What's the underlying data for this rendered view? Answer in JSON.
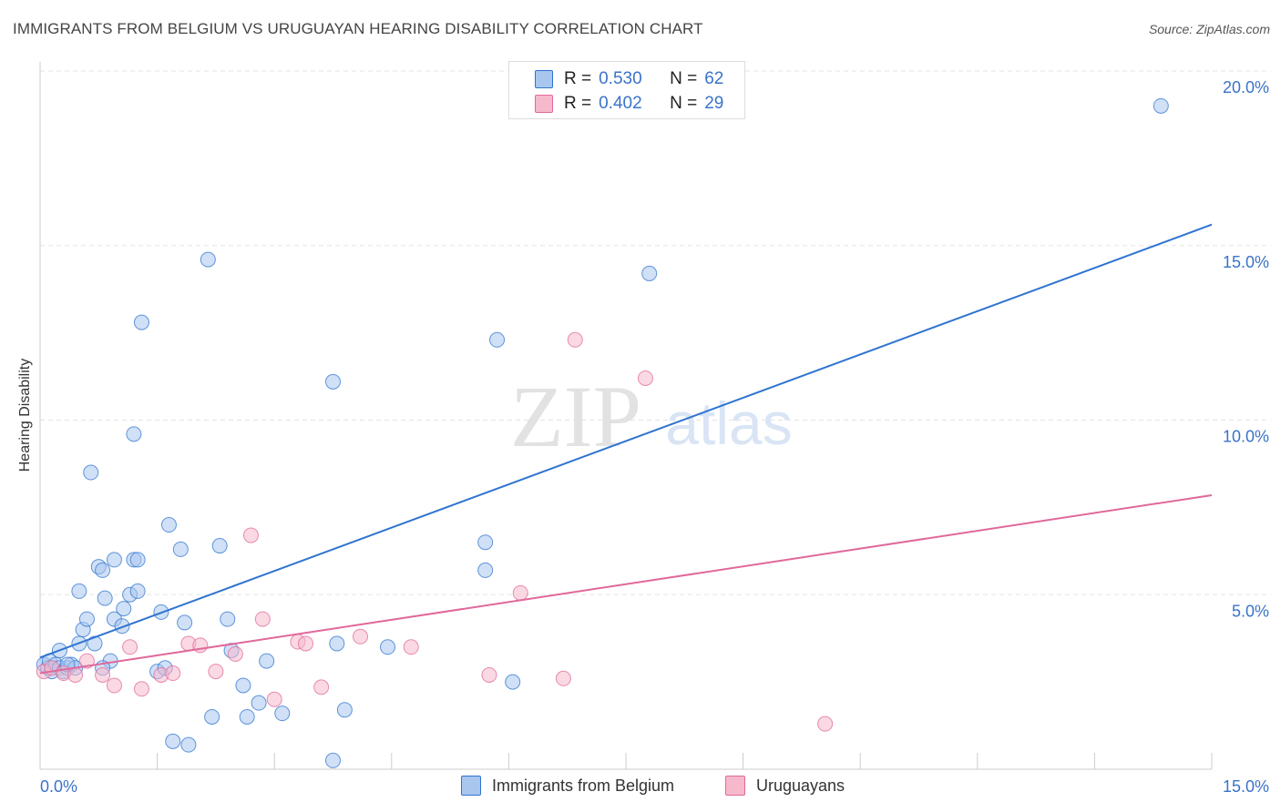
{
  "header": {
    "title": "IMMIGRANTS FROM BELGIUM VS URUGUAYAN HEARING DISABILITY CORRELATION CHART",
    "source": "Source: ZipAtlas.com"
  },
  "watermark": {
    "zip": "ZIP",
    "atlas": "atlas"
  },
  "stats_legend": [
    {
      "r_label": "R =",
      "r_value": "0.530",
      "n_label": "N =",
      "n_value": "62",
      "color": "#a9c6ef"
    },
    {
      "r_label": "R =",
      "r_value": "0.402",
      "n_label": "N =",
      "n_value": "29",
      "color": "#f6b9cc"
    }
  ],
  "bottom_legend": [
    {
      "label": "Immigrants from Belgium",
      "color": "#a9c6ef"
    },
    {
      "label": "Uruguayans",
      "color": "#f6b9cc"
    }
  ],
  "colors": {
    "blue": "#2f74d0",
    "blue_fill": "#a9c6ef",
    "pink": "#e0689b",
    "pink_fill": "#f6b9cc",
    "tick_label": "#3a73c9"
  },
  "chart_data": {
    "type": "scatter",
    "title": "IMMIGRANTS FROM BELGIUM VS URUGUAYAN HEARING DISABILITY CORRELATION CHART",
    "xlabel": "",
    "ylabel": "Hearing Disability",
    "xlim": [
      0,
      15
    ],
    "ylim": [
      0,
      20
    ],
    "x_tick_labels": [
      "0.0%",
      "15.0%"
    ],
    "y_ticks": [
      {
        "value": 5,
        "label": "5.0%"
      },
      {
        "value": 10,
        "label": "10.0%"
      },
      {
        "value": 15,
        "label": "15.0%"
      },
      {
        "value": 20,
        "label": "20.0%"
      }
    ],
    "grid": true,
    "series": [
      {
        "name": "Immigrants from Belgium",
        "color": "#2f74d0",
        "fill": "#a9c6ef",
        "r": 0.53,
        "n": 62,
        "trendline": {
          "x": [
            0,
            15
          ],
          "y": [
            3.2,
            15.6
          ]
        },
        "points": [
          [
            0.05,
            3.0
          ],
          [
            0.1,
            2.9
          ],
          [
            0.12,
            3.1
          ],
          [
            0.15,
            2.8
          ],
          [
            0.2,
            3.0
          ],
          [
            0.25,
            2.9
          ],
          [
            0.3,
            2.8
          ],
          [
            0.35,
            2.9
          ],
          [
            0.4,
            3.0
          ],
          [
            0.45,
            2.9
          ],
          [
            0.25,
            3.4
          ],
          [
            0.5,
            3.6
          ],
          [
            0.55,
            4.0
          ],
          [
            0.6,
            4.3
          ],
          [
            0.7,
            3.6
          ],
          [
            0.5,
            5.1
          ],
          [
            0.65,
            8.5
          ],
          [
            0.75,
            5.8
          ],
          [
            0.8,
            5.7
          ],
          [
            0.83,
            4.9
          ],
          [
            0.9,
            3.1
          ],
          [
            0.95,
            4.3
          ],
          [
            0.95,
            6.0
          ],
          [
            1.05,
            4.1
          ],
          [
            1.07,
            4.6
          ],
          [
            1.15,
            5.0
          ],
          [
            1.2,
            6.0
          ],
          [
            1.25,
            5.1
          ],
          [
            1.25,
            6.0
          ],
          [
            1.2,
            9.6
          ],
          [
            1.3,
            12.8
          ],
          [
            1.5,
            2.8
          ],
          [
            1.6,
            2.9
          ],
          [
            1.55,
            4.5
          ],
          [
            1.65,
            7.0
          ],
          [
            1.8,
            6.3
          ],
          [
            1.85,
            4.2
          ],
          [
            1.7,
            0.8
          ],
          [
            1.9,
            0.7
          ],
          [
            2.15,
            14.6
          ],
          [
            2.2,
            1.5
          ],
          [
            2.3,
            6.4
          ],
          [
            2.4,
            4.3
          ],
          [
            2.45,
            3.4
          ],
          [
            2.6,
            2.4
          ],
          [
            2.65,
            1.5
          ],
          [
            2.8,
            1.9
          ],
          [
            2.9,
            3.1
          ],
          [
            3.1,
            1.6
          ],
          [
            3.75,
            11.1
          ],
          [
            3.8,
            3.6
          ],
          [
            3.75,
            0.25
          ],
          [
            3.9,
            1.7
          ],
          [
            4.45,
            3.5
          ],
          [
            5.7,
            6.5
          ],
          [
            5.7,
            5.7
          ],
          [
            5.85,
            12.3
          ],
          [
            6.05,
            2.5
          ],
          [
            7.8,
            14.2
          ],
          [
            14.35,
            19.0
          ],
          [
            0.8,
            2.9
          ],
          [
            0.35,
            3.0
          ]
        ]
      },
      {
        "name": "Uruguayans",
        "color": "#e0689b",
        "fill": "#f6b9cc",
        "r": 0.402,
        "n": 29,
        "trendline": {
          "x": [
            0,
            15
          ],
          "y": [
            2.75,
            7.85
          ]
        },
        "points": [
          [
            0.05,
            2.8
          ],
          [
            0.15,
            2.9
          ],
          [
            0.3,
            2.75
          ],
          [
            0.45,
            2.7
          ],
          [
            0.6,
            3.1
          ],
          [
            0.8,
            2.7
          ],
          [
            0.95,
            2.4
          ],
          [
            1.15,
            3.5
          ],
          [
            1.3,
            2.3
          ],
          [
            1.55,
            2.7
          ],
          [
            1.7,
            2.75
          ],
          [
            1.9,
            3.6
          ],
          [
            2.05,
            3.55
          ],
          [
            2.25,
            2.8
          ],
          [
            2.5,
            3.3
          ],
          [
            2.7,
            6.7
          ],
          [
            2.85,
            4.3
          ],
          [
            3.0,
            2.0
          ],
          [
            3.3,
            3.65
          ],
          [
            3.4,
            3.6
          ],
          [
            3.6,
            2.35
          ],
          [
            4.1,
            3.8
          ],
          [
            4.75,
            3.5
          ],
          [
            5.75,
            2.7
          ],
          [
            6.15,
            5.05
          ],
          [
            6.7,
            2.6
          ],
          [
            6.85,
            12.3
          ],
          [
            7.75,
            11.2
          ],
          [
            10.05,
            1.3
          ]
        ]
      }
    ]
  }
}
